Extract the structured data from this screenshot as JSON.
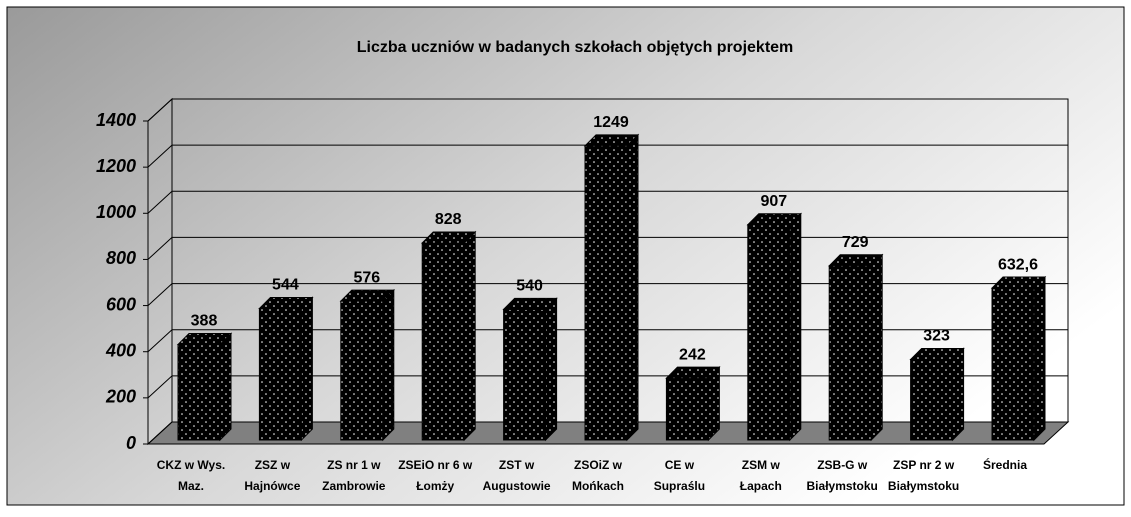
{
  "chart_data": {
    "type": "bar3d",
    "title": "Liczba uczniów w badanych szkołach objętych projektem",
    "categories": [
      [
        "CKZ w Wys.",
        "Maz."
      ],
      [
        "ZSZ w",
        "Hajnówce"
      ],
      [
        "ZS nr 1 w",
        "Zambrowie"
      ],
      [
        "ZSEiO nr 6 w",
        "Łomży"
      ],
      [
        "ZST w",
        "Augustowie"
      ],
      [
        "ZSOiZ w",
        "Mońkach"
      ],
      [
        "CE w",
        "Supraślu"
      ],
      [
        "ZSM w",
        "Łapach"
      ],
      [
        "ZSB-G w",
        "Białymstoku"
      ],
      [
        "ZSP nr 2 w",
        "Białymstoku"
      ],
      [
        "Średnia"
      ]
    ],
    "values": [
      388,
      544,
      576,
      828,
      540,
      1249,
      242,
      907,
      729,
      323,
      632.6
    ],
    "value_labels": [
      "388",
      "544",
      "576",
      "828",
      "540",
      "1249",
      "242",
      "907",
      "729",
      "323",
      "632,6"
    ],
    "color": "#000000",
    "ylim": [
      0,
      1400
    ],
    "yticks": [
      0,
      200,
      400,
      600,
      800,
      1000,
      1200,
      1400
    ],
    "grid": true
  }
}
